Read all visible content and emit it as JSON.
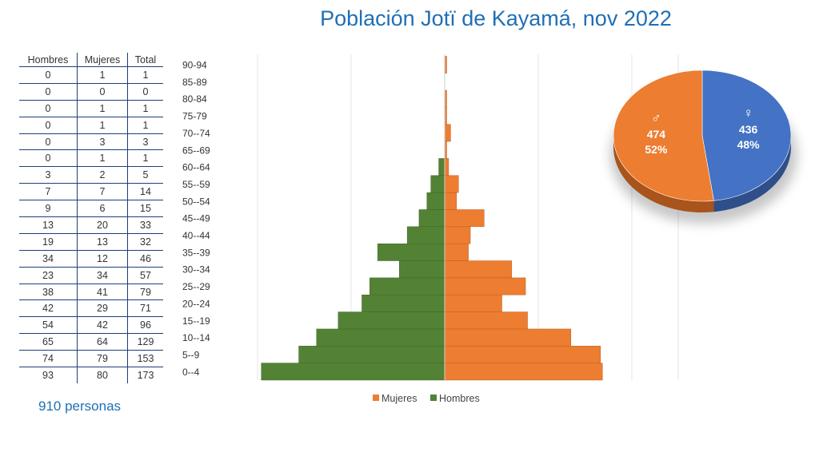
{
  "title": "Población Jotï de Kayamá, nov 2022",
  "table": {
    "headers": [
      "Hombres",
      "Mujeres",
      "Total"
    ],
    "rows": [
      [
        0,
        1,
        1
      ],
      [
        0,
        0,
        0
      ],
      [
        0,
        1,
        1
      ],
      [
        0,
        1,
        1
      ],
      [
        0,
        3,
        3
      ],
      [
        0,
        1,
        1
      ],
      [
        3,
        2,
        5
      ],
      [
        7,
        7,
        14
      ],
      [
        9,
        6,
        15
      ],
      [
        13,
        20,
        33
      ],
      [
        19,
        13,
        32
      ],
      [
        34,
        12,
        46
      ],
      [
        23,
        34,
        57
      ],
      [
        38,
        41,
        79
      ],
      [
        42,
        29,
        71
      ],
      [
        54,
        42,
        96
      ],
      [
        65,
        64,
        129
      ],
      [
        74,
        79,
        153
      ],
      [
        93,
        80,
        173
      ]
    ]
  },
  "total_label": "910 personas",
  "chart_data": [
    {
      "type": "bar",
      "orientation": "horizontal",
      "layout": "population-pyramid",
      "categories": [
        "0--4",
        "5--9",
        "10--14",
        "15--19",
        "20--24",
        "25--29",
        "30--34",
        "35--39",
        "40--44",
        "45--49",
        "50--54",
        "55--59",
        "60--64",
        "65--69",
        "70--74",
        "75-79",
        "80-84",
        "85-89",
        "90-94"
      ],
      "series": [
        {
          "name": "Mujeres",
          "color": "#ed7d31",
          "values": [
            80,
            79,
            64,
            42,
            29,
            41,
            34,
            12,
            13,
            20,
            6,
            7,
            2,
            1,
            3,
            1,
            1,
            0,
            1
          ]
        },
        {
          "name": "Hombres",
          "color": "#548235",
          "values": [
            93,
            74,
            65,
            54,
            42,
            38,
            23,
            34,
            19,
            13,
            9,
            7,
            3,
            0,
            0,
            0,
            0,
            0,
            0
          ]
        }
      ],
      "grid": true,
      "legend_position": "bottom"
    },
    {
      "type": "pie",
      "style": "3d",
      "slices": [
        {
          "symbol": "♀",
          "value": 436,
          "percent": "48%",
          "color": "#4472c4"
        },
        {
          "symbol": "♂",
          "value": 474,
          "percent": "52%",
          "color": "#ed7d31"
        }
      ]
    }
  ]
}
